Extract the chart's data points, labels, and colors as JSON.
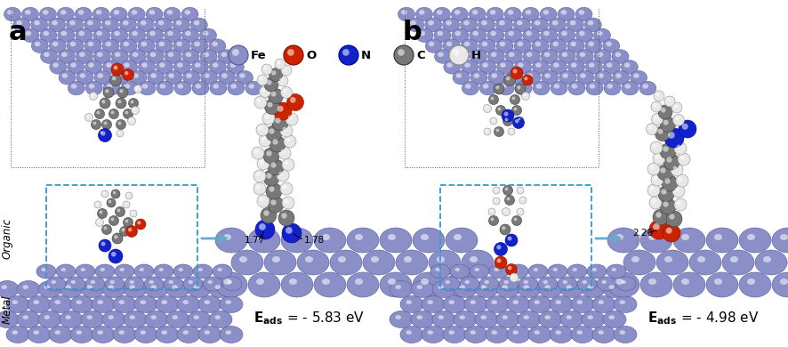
{
  "figure_width": 8.86,
  "figure_height": 3.9,
  "dpi": 100,
  "background_color": "#ffffff",
  "panel_a_label": "a",
  "panel_b_label": "b",
  "legend_items": [
    {
      "label": "Fe",
      "color": "#8B8FC8",
      "edge": "#5a5a9a",
      "gradient": "#b0b4e0"
    },
    {
      "label": "O",
      "color": "#cc2200",
      "edge": "#881100",
      "gradient": "#ff6644"
    },
    {
      "label": "N",
      "color": "#1122cc",
      "edge": "#000888",
      "gradient": "#4455ff"
    },
    {
      "label": "C",
      "color": "#787878",
      "edge": "#3a3a3a",
      "gradient": "#aaaaaa"
    },
    {
      "label": "H",
      "color": "#e8e8e8",
      "edge": "#909090",
      "gradient": "#ffffff"
    }
  ],
  "fe_color": "#8B8FC8",
  "fe_edge": "#5a5a9a",
  "fe_highlight": "#c0c4e8",
  "o_color": "#cc2200",
  "o_edge": "#881100",
  "n_color": "#1122cc",
  "n_edge": "#000888",
  "c_color": "#787878",
  "c_edge": "#3a3a3a",
  "h_color": "#e8e8e8",
  "h_edge": "#909090",
  "arrow_color": "#66aacc",
  "dashed_box_color": "#3399cc",
  "dotted_line_color": "#555555",
  "eads_a": "E$_{ads}$ = - 5.83 eV",
  "eads_b": "E$_{ads}$ = - 4.98 eV",
  "dist_a1": "1.77",
  "dist_a2": "1.78",
  "dist_b1": "2.20"
}
